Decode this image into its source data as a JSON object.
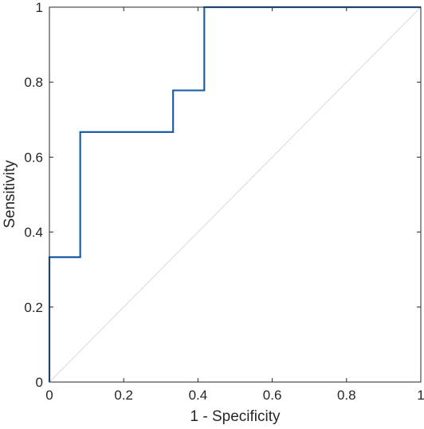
{
  "chart_data": {
    "type": "line",
    "title": "",
    "xlabel": "1 - Specificity",
    "ylabel": "Sensitivity",
    "xlim": [
      0,
      1
    ],
    "ylim": [
      0,
      1
    ],
    "xticks": [
      0,
      0.2,
      0.4,
      0.6,
      0.8,
      1
    ],
    "yticks": [
      0,
      0.2,
      0.4,
      0.6,
      0.8,
      1
    ],
    "xtick_labels": [
      "0",
      "0.2",
      "0.4",
      "0.6",
      "0.8",
      "1"
    ],
    "ytick_labels": [
      "0",
      "0.2",
      "0.4",
      "0.6",
      "0.8",
      "1"
    ],
    "grid": false,
    "series": [
      {
        "style": "step",
        "color": "#1f5fa8",
        "x": [
          0,
          0,
          0.083,
          0.083,
          0.333,
          0.333,
          0.417,
          0.417,
          1
        ],
        "y": [
          0,
          0.333,
          0.333,
          0.667,
          0.667,
          0.778,
          0.778,
          1,
          1
        ]
      },
      {
        "style": "reference-diagonal",
        "color": "#d9d9d9",
        "x": [
          0,
          1
        ],
        "y": [
          0,
          1
        ]
      }
    ]
  }
}
